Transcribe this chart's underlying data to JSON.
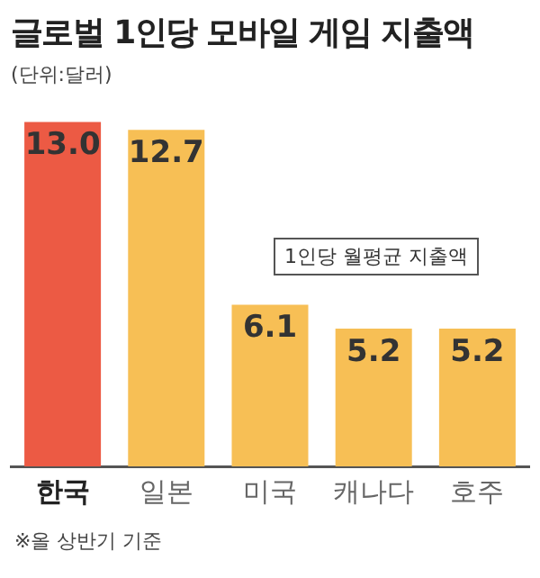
{
  "chart_data": {
    "type": "bar",
    "title": "글로벌 1인당 모바일 게임 지출액",
    "subtitle": "(단위:달러)",
    "categories": [
      "한국",
      "일본",
      "미국",
      "캐나다",
      "호주"
    ],
    "values": [
      13.0,
      12.7,
      6.1,
      5.2,
      5.2
    ],
    "colors": [
      "#ec5a44",
      "#f7bf55",
      "#f7bf55",
      "#f7bf55",
      "#f7bf55"
    ],
    "value_labels": [
      "13.0",
      "12.7",
      "6.1",
      "5.2",
      "5.2"
    ],
    "annotations": [
      "1인당 월평균 지출액",
      "※올 상반기 기준"
    ],
    "grid": false,
    "legend": false
  }
}
